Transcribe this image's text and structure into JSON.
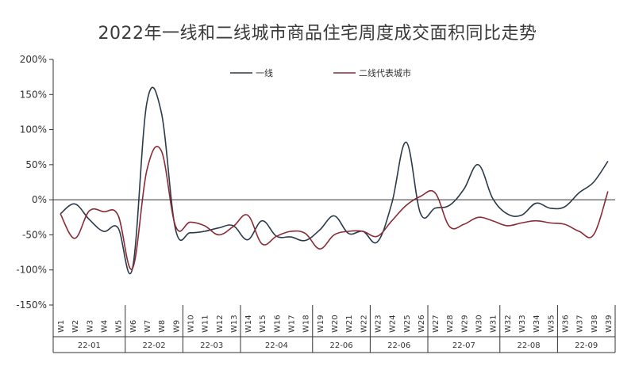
{
  "chart_data": {
    "type": "line",
    "title": "2022年一线和二线城市商品住宅周度成交面积同比走势",
    "ylim": [
      -150,
      200
    ],
    "yticks": [
      200,
      150,
      100,
      50,
      0,
      -50,
      -100,
      -150
    ],
    "ytick_labels": [
      "200%",
      "150%",
      "100%",
      "50%",
      "0%",
      "-50%",
      "-100%",
      "-150%"
    ],
    "categories": [
      "W1",
      "W2",
      "W3",
      "W4",
      "W5",
      "W6",
      "W7",
      "W8",
      "W9",
      "W10",
      "W11",
      "W12",
      "W13",
      "W14",
      "W15",
      "W16",
      "W17",
      "W18",
      "W19",
      "W20",
      "W21",
      "W22",
      "W23",
      "W24",
      "W25",
      "W26",
      "W27",
      "W28",
      "W29",
      "W30",
      "W31",
      "W32",
      "W33",
      "W34",
      "W35",
      "W36",
      "W37",
      "W38",
      "W39"
    ],
    "x_tick_labels": [
      "W1",
      "W2",
      "W3",
      "W4",
      "W5",
      "W6",
      "W7",
      "W8",
      "W9",
      "W10",
      "W11",
      "W12",
      "W13",
      "W14",
      "W15",
      "W16",
      "W17",
      "W18",
      "W19",
      "W20",
      "W21",
      "W22",
      "W23",
      "W24",
      "W25",
      "W26",
      "W27",
      "W28",
      "W29",
      "W30",
      "W31",
      "W32",
      "W33",
      "W34",
      "W35",
      "W36",
      "W37",
      "W38",
      "W39"
    ],
    "groups": [
      {
        "label": "22-01",
        "start": 0,
        "end": 4
      },
      {
        "label": "22-02",
        "start": 5,
        "end": 8
      },
      {
        "label": "22-03",
        "start": 9,
        "end": 12
      },
      {
        "label": "22-04",
        "start": 13,
        "end": 17
      },
      {
        "label": "22-06",
        "start": 18,
        "end": 21
      },
      {
        "label": "22-06",
        "start": 22,
        "end": 25
      },
      {
        "label": "22-07",
        "start": 26,
        "end": 30
      },
      {
        "label": "22-08",
        "start": 31,
        "end": 34
      },
      {
        "label": "22-09",
        "start": 35,
        "end": 38
      }
    ],
    "series": [
      {
        "name": "一线",
        "color": "#2b3a4a",
        "values": [
          -20,
          -6,
          -28,
          -45,
          -40,
          -98,
          138,
          125,
          -43,
          -47,
          -45,
          -40,
          -37,
          -57,
          -30,
          -52,
          -53,
          -58,
          -43,
          -23,
          -48,
          -45,
          -60,
          -5,
          82,
          -20,
          -12,
          -8,
          15,
          50,
          2,
          -20,
          -22,
          -5,
          -12,
          -10,
          10,
          25,
          55
        ]
      },
      {
        "name": "二线代表城市",
        "color": "#8a2b35",
        "values": [
          -20,
          -55,
          -16,
          -17,
          -22,
          -98,
          42,
          70,
          -38,
          -32,
          -37,
          -50,
          -38,
          -22,
          -63,
          -52,
          -45,
          -48,
          -70,
          -50,
          -45,
          -45,
          -52,
          -30,
          -8,
          5,
          10,
          -38,
          -35,
          -25,
          -30,
          -37,
          -33,
          -30,
          -33,
          -35,
          -45,
          -50,
          12
        ]
      }
    ],
    "legend_position": "top",
    "grid": false
  }
}
